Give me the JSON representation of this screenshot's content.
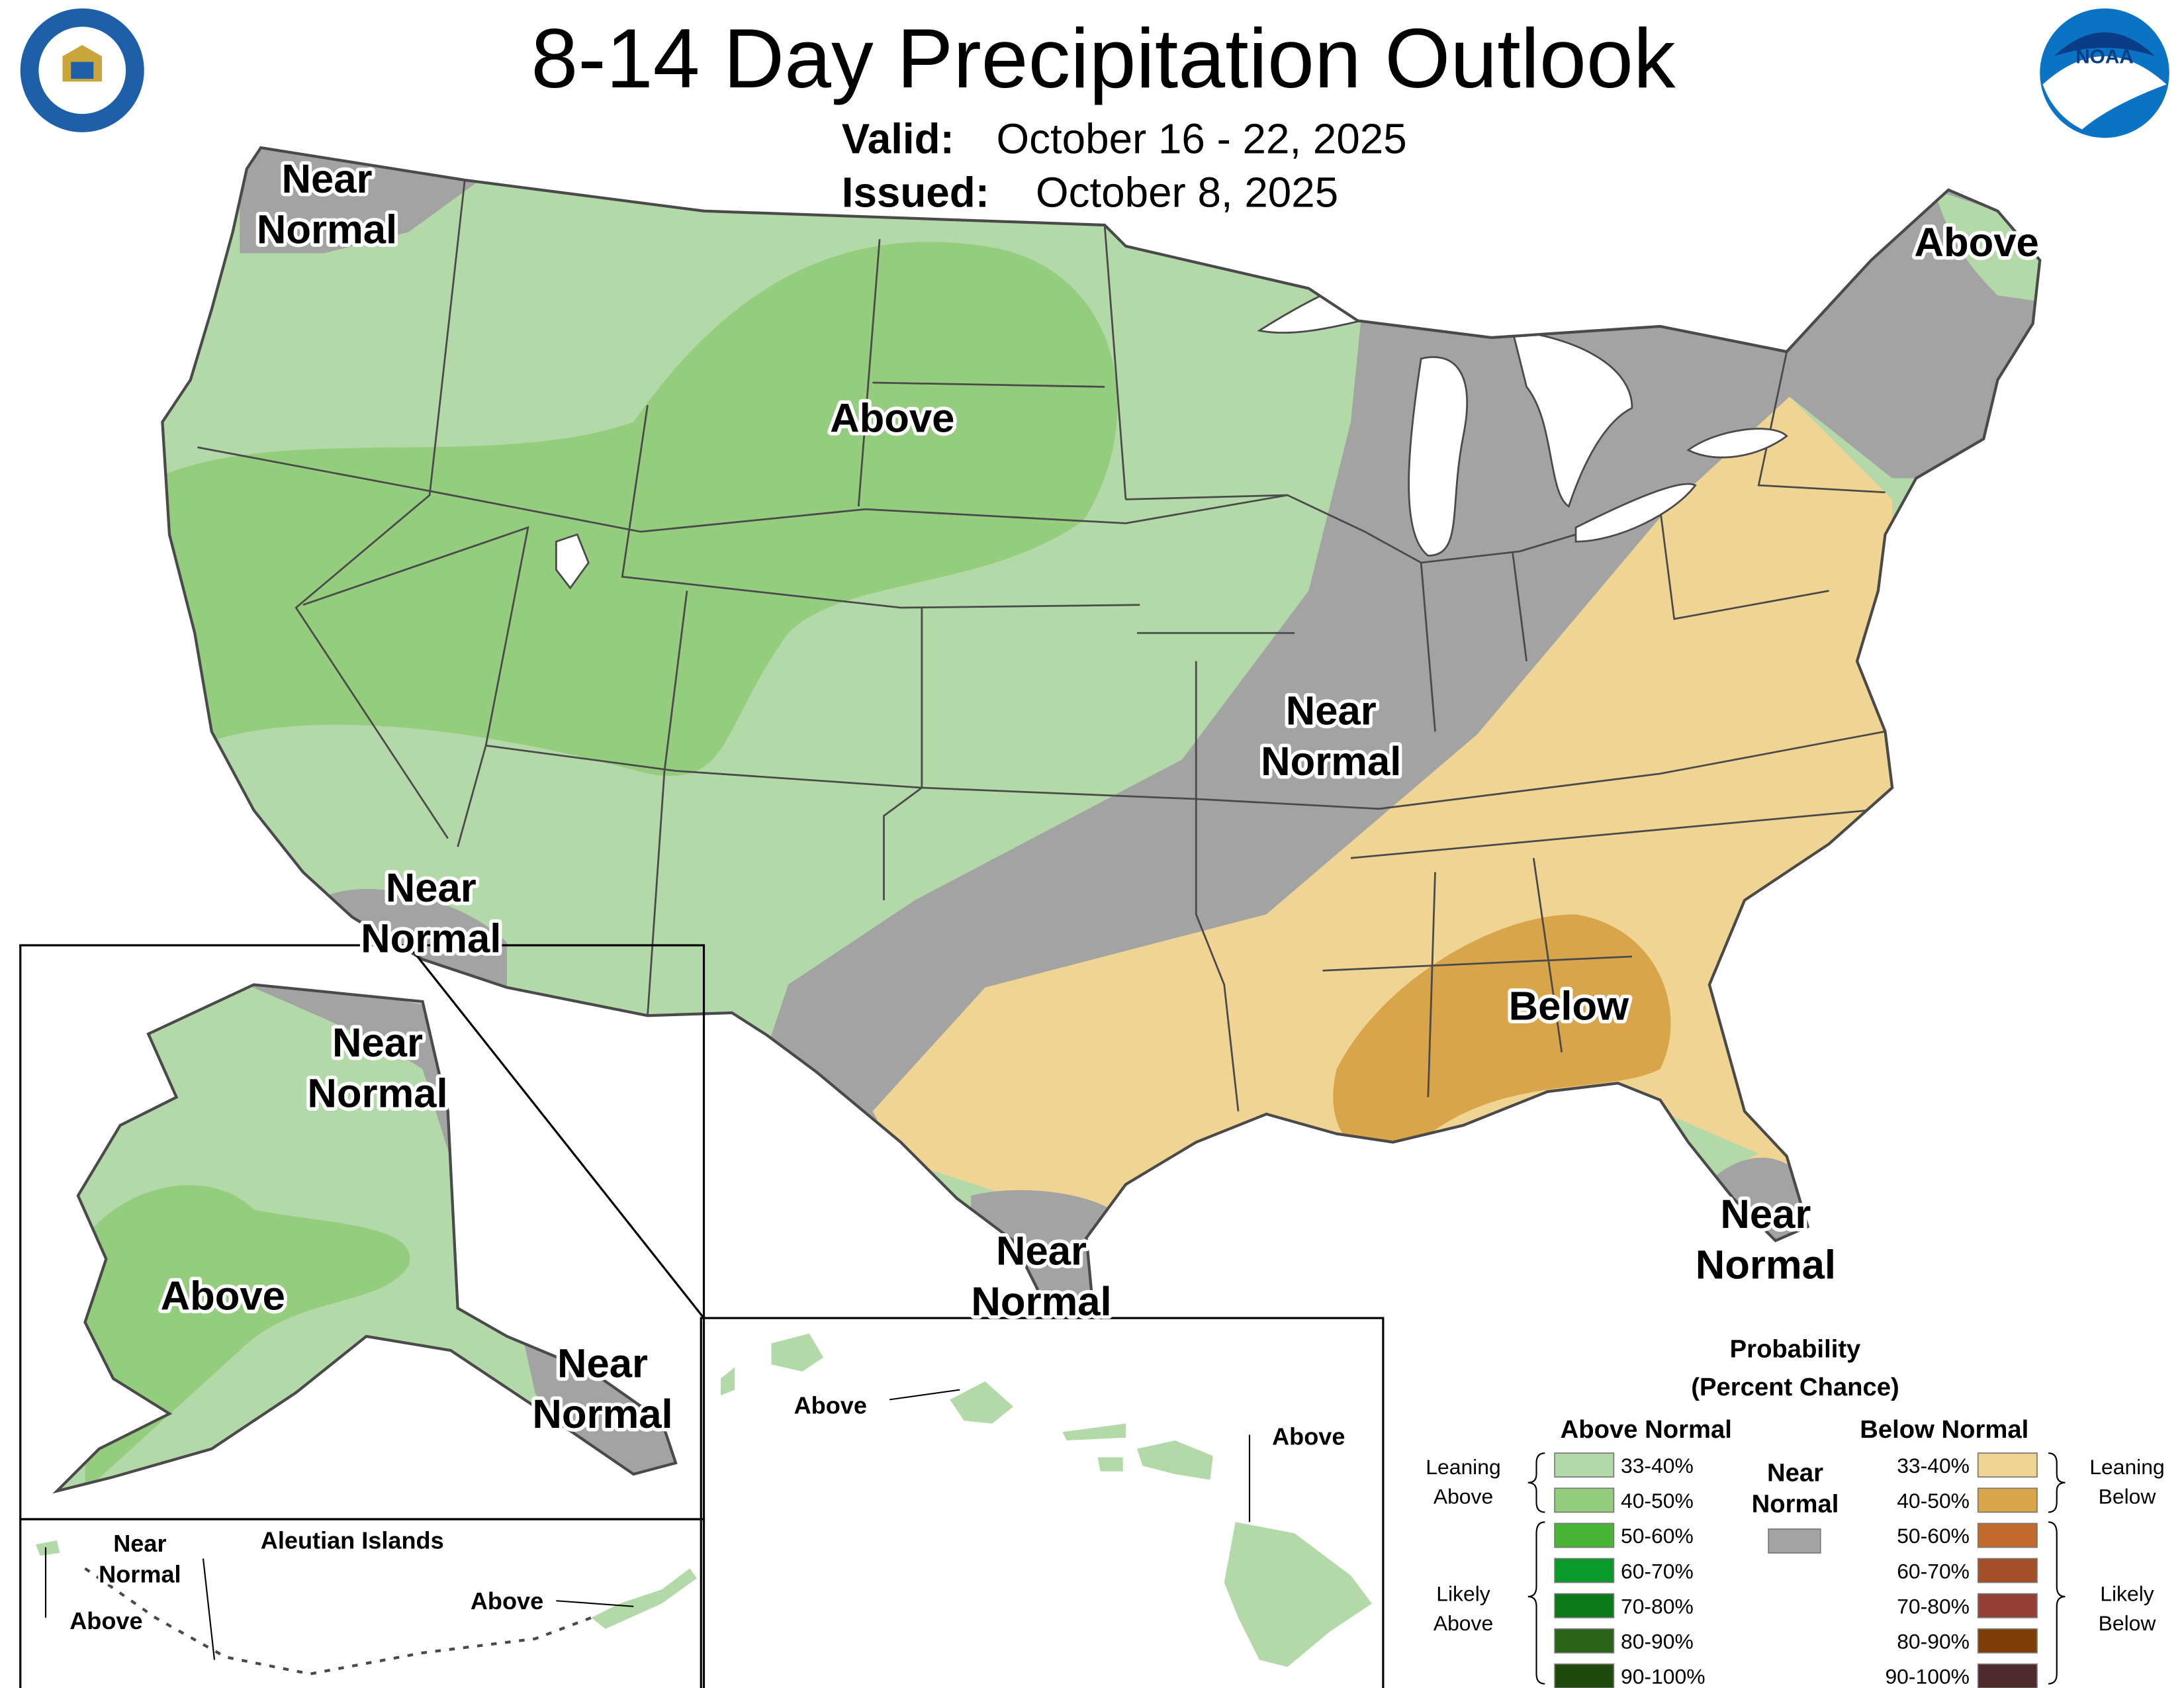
{
  "header": {
    "title": "8-14 Day Precipitation Outlook",
    "valid_label": "Valid:",
    "valid": "October 16 - 22, 2025",
    "issued_label": "Issued:",
    "issued": "October 8, 2025"
  },
  "logos": {
    "noaa": "NOAA"
  },
  "map_labels": [
    [
      "Near",
      "Normal"
    ],
    [
      "Above"
    ],
    [
      "Above"
    ],
    [
      "Near",
      "Normal"
    ],
    [
      "Near",
      "Normal"
    ],
    [
      "Below"
    ],
    [
      "Near",
      "Normal"
    ],
    [
      "Near",
      "Normal"
    ],
    [
      "Near",
      "Normal"
    ],
    [
      "Above"
    ],
    [
      "Near",
      "Normal"
    ]
  ],
  "small_labels": [
    [
      "Near",
      "Normal"
    ],
    [
      "Above"
    ],
    [
      "Aleutian Islands"
    ],
    [
      "Above"
    ],
    [
      "Above"
    ],
    [
      "Above"
    ]
  ],
  "legend": {
    "title": [
      "Probability",
      "(Percent Chance)"
    ],
    "above_header": "Above Normal",
    "below_header": "Below Normal",
    "near": {
      "label": [
        "Near",
        "Normal"
      ],
      "color": "#a3a3a3"
    },
    "above": [
      {
        "label": "33-40%",
        "color": "#b3d9a9"
      },
      {
        "label": "40-50%",
        "color": "#94cd7e"
      },
      {
        "label": "50-60%",
        "color": "#48b436"
      },
      {
        "label": "60-70%",
        "color": "#0a9a2a"
      },
      {
        "label": "70-80%",
        "color": "#0a7a18"
      },
      {
        "label": "80-90%",
        "color": "#2a6418"
      },
      {
        "label": "90-100%",
        "color": "#1e4a0e"
      }
    ],
    "below": [
      {
        "label": "33-40%",
        "color": "#f0d494"
      },
      {
        "label": "40-50%",
        "color": "#d9a54a"
      },
      {
        "label": "50-60%",
        "color": "#c16a2c"
      },
      {
        "label": "60-70%",
        "color": "#a24f2a"
      },
      {
        "label": "70-80%",
        "color": "#954036"
      },
      {
        "label": "80-90%",
        "color": "#7f3e05"
      },
      {
        "label": "90-100%",
        "color": "#4d2b2b"
      }
    ],
    "leaning_above": [
      "Leaning",
      "Above"
    ],
    "likely_above": [
      "Likely",
      "Above"
    ],
    "leaning_below": [
      "Leaning",
      "Below"
    ],
    "likely_below": [
      "Likely",
      "Below"
    ]
  }
}
